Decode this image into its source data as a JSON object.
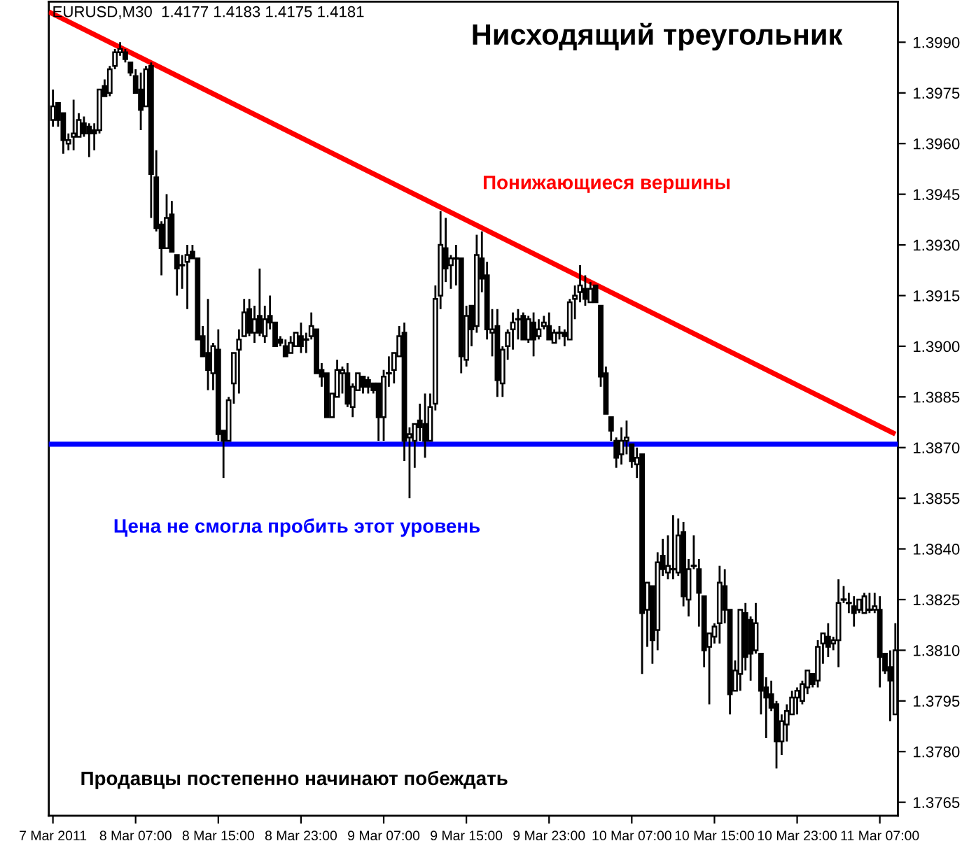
{
  "chart_data": {
    "type": "candlestick",
    "title": "Нисходящий треугольник",
    "annotations": [
      "EURUSD,M30  1.4177 1.4183 1.4175 1.4181",
      "Продавцы постепенно начинают побеждать"
    ],
    "x": [
      "2011-03-07T23:00",
      "2011-03-07T23:30",
      "2011-03-08T00:00",
      "2011-03-08T00:30",
      "2011-03-08T01:00",
      "2011-03-08T01:30",
      "2011-03-08T02:00",
      "2011-03-08T02:30",
      "2011-03-08T03:00",
      "2011-03-08T03:30",
      "2011-03-08T04:00",
      "2011-03-08T04:30",
      "2011-03-08T05:00",
      "2011-03-08T05:30",
      "2011-03-08T06:00",
      "2011-03-08T06:30",
      "2011-03-08T07:00",
      "2011-03-08T07:30",
      "2011-03-08T08:00",
      "2011-03-08T08:30",
      "2011-03-08T09:00",
      "2011-03-08T09:30",
      "2011-03-08T10:00",
      "2011-03-08T10:30",
      "2011-03-08T11:00",
      "2011-03-08T11:30",
      "2011-03-08T12:00",
      "2011-03-08T12:30",
      "2011-03-08T13:00",
      "2011-03-08T13:30",
      "2011-03-08T14:00",
      "2011-03-08T14:30",
      "2011-03-08T15:00",
      "2011-03-08T15:30",
      "2011-03-08T16:00",
      "2011-03-08T16:30",
      "2011-03-08T17:00",
      "2011-03-08T17:30",
      "2011-03-08T18:00",
      "2011-03-08T18:30",
      "2011-03-08T19:00",
      "2011-03-08T19:30",
      "2011-03-08T20:00",
      "2011-03-08T20:30",
      "2011-03-08T21:00",
      "2011-03-08T21:30",
      "2011-03-08T22:00",
      "2011-03-08T22:30",
      "2011-03-08T23:00",
      "2011-03-08T23:30",
      "2011-03-09T00:00",
      "2011-03-09T00:30",
      "2011-03-09T01:00",
      "2011-03-09T01:30",
      "2011-03-09T02:00",
      "2011-03-09T02:30",
      "2011-03-09T03:00",
      "2011-03-09T03:30",
      "2011-03-09T04:00",
      "2011-03-09T04:30",
      "2011-03-09T05:00",
      "2011-03-09T05:30",
      "2011-03-09T06:00",
      "2011-03-09T06:30",
      "2011-03-09T07:00",
      "2011-03-09T07:30",
      "2011-03-09T08:00",
      "2011-03-09T08:30",
      "2011-03-09T09:00",
      "2011-03-09T09:30",
      "2011-03-09T10:00",
      "2011-03-09T10:30",
      "2011-03-09T11:00",
      "2011-03-09T11:30",
      "2011-03-09T12:00",
      "2011-03-09T12:30",
      "2011-03-09T13:00",
      "2011-03-09T13:30",
      "2011-03-09T14:00",
      "2011-03-09T14:30",
      "2011-03-09T15:00",
      "2011-03-09T15:30",
      "2011-03-09T16:00",
      "2011-03-09T16:30",
      "2011-03-09T17:00",
      "2011-03-09T17:30",
      "2011-03-09T18:00",
      "2011-03-09T18:30",
      "2011-03-09T19:00",
      "2011-03-09T19:30",
      "2011-03-09T20:00",
      "2011-03-09T20:30",
      "2011-03-09T21:00",
      "2011-03-09T21:30",
      "2011-03-09T22:00",
      "2011-03-09T22:30",
      "2011-03-09T23:00",
      "2011-03-09T23:30",
      "2011-03-10T00:00",
      "2011-03-10T00:30",
      "2011-03-10T01:00",
      "2011-03-10T01:30",
      "2011-03-10T02:00",
      "2011-03-10T02:30",
      "2011-03-10T03:00",
      "2011-03-10T03:30",
      "2011-03-10T04:00",
      "2011-03-10T04:30",
      "2011-03-10T05:00",
      "2011-03-10T05:30",
      "2011-03-10T06:00",
      "2011-03-10T06:30",
      "2011-03-10T07:00",
      "2011-03-10T07:30",
      "2011-03-10T08:00",
      "2011-03-10T08:30",
      "2011-03-10T09:00",
      "2011-03-10T09:30",
      "2011-03-10T10:00",
      "2011-03-10T10:30",
      "2011-03-10T11:00",
      "2011-03-10T11:30",
      "2011-03-10T12:00",
      "2011-03-10T12:30",
      "2011-03-10T13:00",
      "2011-03-10T13:30",
      "2011-03-10T14:00",
      "2011-03-10T14:30",
      "2011-03-10T15:00",
      "2011-03-10T15:30",
      "2011-03-10T16:00",
      "2011-03-10T16:30",
      "2011-03-10T17:00",
      "2011-03-10T17:30",
      "2011-03-10T18:00",
      "2011-03-10T18:30",
      "2011-03-10T19:00",
      "2011-03-10T19:30",
      "2011-03-10T20:00",
      "2011-03-10T20:30",
      "2011-03-10T21:00",
      "2011-03-10T21:30",
      "2011-03-10T22:00",
      "2011-03-10T22:30",
      "2011-03-10T23:00",
      "2011-03-10T23:30",
      "2011-03-11T00:00",
      "2011-03-11T00:30",
      "2011-03-11T01:00",
      "2011-03-11T01:30",
      "2011-03-11T02:00",
      "2011-03-11T02:30",
      "2011-03-11T03:00",
      "2011-03-11T03:30",
      "2011-03-11T04:00",
      "2011-03-11T04:30",
      "2011-03-11T05:00",
      "2011-03-11T05:30",
      "2011-03-11T06:00",
      "2011-03-11T06:30",
      "2011-03-11T07:00",
      "2011-03-11T07:30",
      "2011-03-11T08:00",
      "2011-03-11T08:30"
    ],
    "ohlc": [
      [
        1.3967,
        1.3976,
        1.3965,
        1.3971
      ],
      [
        1.3972,
        1.3972,
        1.3965,
        1.3967
      ],
      [
        1.3969,
        1.3969,
        1.3957,
        1.3961
      ],
      [
        1.396,
        1.3963,
        1.3958,
        1.3961
      ],
      [
        1.3962,
        1.3973,
        1.3958,
        1.3963
      ],
      [
        1.3962,
        1.3969,
        1.3962,
        1.3967
      ],
      [
        1.3966,
        1.3968,
        1.3962,
        1.3963
      ],
      [
        1.3965,
        1.3966,
        1.3956,
        1.3963
      ],
      [
        1.3964,
        1.3966,
        1.3958,
        1.3963
      ],
      [
        1.3964,
        1.3976,
        1.3963,
        1.3976
      ],
      [
        1.3977,
        1.3979,
        1.3974,
        1.3974
      ],
      [
        1.3975,
        1.3983,
        1.3974,
        1.3982
      ],
      [
        1.3983,
        1.3988,
        1.3982,
        1.3987
      ],
      [
        1.3987,
        1.399,
        1.3986,
        1.3988
      ],
      [
        1.3987,
        1.3988,
        1.3984,
        1.3985
      ],
      [
        1.3984,
        1.3984,
        1.398,
        1.3981
      ],
      [
        1.398,
        1.3982,
        1.3975,
        1.3975
      ],
      [
        1.3976,
        1.3981,
        1.3964,
        1.397
      ],
      [
        1.3971,
        1.3983,
        1.3971,
        1.3982
      ],
      [
        1.3983,
        1.3984,
        1.3938,
        1.3951
      ],
      [
        1.395,
        1.3958,
        1.3934,
        1.3935
      ],
      [
        1.3936,
        1.3937,
        1.3921,
        1.3929
      ],
      [
        1.3929,
        1.3945,
        1.3929,
        1.3938
      ],
      [
        1.3939,
        1.3943,
        1.3928,
        1.3928
      ],
      [
        1.3927,
        1.3927,
        1.3915,
        1.3923
      ],
      [
        1.3924,
        1.3927,
        1.3917,
        1.3924
      ],
      [
        1.3925,
        1.393,
        1.3911,
        1.3927
      ],
      [
        1.3928,
        1.393,
        1.3926,
        1.3926
      ],
      [
        1.3926,
        1.3926,
        1.3902,
        1.3902
      ],
      [
        1.3903,
        1.3906,
        1.3897,
        1.3897
      ],
      [
        1.3898,
        1.3914,
        1.3887,
        1.3893
      ],
      [
        1.3892,
        1.3901,
        1.3887,
        1.39
      ],
      [
        1.3899,
        1.3905,
        1.3872,
        1.3874
      ],
      [
        1.3875,
        1.3875,
        1.3861,
        1.3872
      ],
      [
        1.3872,
        1.3885,
        1.3872,
        1.3884
      ],
      [
        1.3889,
        1.3898,
        1.3883,
        1.3898
      ],
      [
        1.3899,
        1.3905,
        1.3886,
        1.3902
      ],
      [
        1.3903,
        1.3914,
        1.3903,
        1.391
      ],
      [
        1.3911,
        1.3914,
        1.3903,
        1.3904
      ],
      [
        1.3904,
        1.3912,
        1.3901,
        1.3908
      ],
      [
        1.3909,
        1.3923,
        1.3903,
        1.3904
      ],
      [
        1.3903,
        1.3912,
        1.3901,
        1.3908
      ],
      [
        1.3909,
        1.3915,
        1.3905,
        1.3907
      ],
      [
        1.3907,
        1.3907,
        1.39,
        1.39
      ],
      [
        1.3902,
        1.3903,
        1.39,
        1.3901
      ],
      [
        1.39,
        1.3902,
        1.3897,
        1.3897
      ],
      [
        1.3898,
        1.3903,
        1.3898,
        1.3901
      ],
      [
        1.39,
        1.3904,
        1.39,
        1.3904
      ],
      [
        1.3903,
        1.3907,
        1.3898,
        1.39
      ],
      [
        1.3902,
        1.3904,
        1.3898,
        1.3902
      ],
      [
        1.3903,
        1.391,
        1.3902,
        1.3906
      ],
      [
        1.3905,
        1.3905,
        1.3892,
        1.3892
      ],
      [
        1.3893,
        1.3895,
        1.3888,
        1.3891
      ],
      [
        1.3892,
        1.3892,
        1.3879,
        1.3879
      ],
      [
        1.3879,
        1.3886,
        1.3879,
        1.3886
      ],
      [
        1.3885,
        1.3896,
        1.3885,
        1.3893
      ],
      [
        1.3892,
        1.3894,
        1.3886,
        1.3893
      ],
      [
        1.3892,
        1.3895,
        1.3882,
        1.3883
      ],
      [
        1.3882,
        1.3889,
        1.3879,
        1.3888
      ],
      [
        1.3887,
        1.3892,
        1.3887,
        1.3892
      ],
      [
        1.3891,
        1.3891,
        1.3886,
        1.3888
      ],
      [
        1.389,
        1.3891,
        1.3886,
        1.3888
      ],
      [
        1.3889,
        1.3889,
        1.3886,
        1.3887
      ],
      [
        1.3889,
        1.3889,
        1.3872,
        1.3879
      ],
      [
        1.3879,
        1.3893,
        1.3872,
        1.3891
      ],
      [
        1.3892,
        1.3897,
        1.3888,
        1.3892
      ],
      [
        1.3893,
        1.3898,
        1.3889,
        1.3898
      ],
      [
        1.3897,
        1.3906,
        1.3897,
        1.3903
      ],
      [
        1.3904,
        1.3907,
        1.3866,
        1.3872
      ],
      [
        1.3873,
        1.3876,
        1.3855,
        1.3874
      ],
      [
        1.3872,
        1.3877,
        1.3864,
        1.3877
      ],
      [
        1.3878,
        1.3883,
        1.3872,
        1.3876
      ],
      [
        1.3877,
        1.3886,
        1.3867,
        1.3872
      ],
      [
        1.3872,
        1.3886,
        1.3872,
        1.3882
      ],
      [
        1.3883,
        1.3918,
        1.3881,
        1.3914
      ],
      [
        1.3915,
        1.394,
        1.3911,
        1.393
      ],
      [
        1.3929,
        1.3938,
        1.3919,
        1.3923
      ],
      [
        1.3924,
        1.3927,
        1.3917,
        1.3926
      ],
      [
        1.3926,
        1.393,
        1.3918,
        1.3926
      ],
      [
        1.3926,
        1.3926,
        1.3892,
        1.3897
      ],
      [
        1.3896,
        1.3912,
        1.3894,
        1.3909
      ],
      [
        1.3912,
        1.3912,
        1.39,
        1.3905
      ],
      [
        1.3906,
        1.3933,
        1.3904,
        1.3927
      ],
      [
        1.3926,
        1.3934,
        1.3916,
        1.392
      ],
      [
        1.3921,
        1.3925,
        1.3902,
        1.3905
      ],
      [
        1.3904,
        1.3911,
        1.3897,
        1.3905
      ],
      [
        1.3906,
        1.3911,
        1.3885,
        1.389
      ],
      [
        1.3889,
        1.39,
        1.3885,
        1.3899
      ],
      [
        1.39,
        1.3905,
        1.3896,
        1.3904
      ],
      [
        1.3905,
        1.391,
        1.3899,
        1.3907
      ],
      [
        1.3908,
        1.3911,
        1.3902,
        1.3908
      ],
      [
        1.3909,
        1.391,
        1.3902,
        1.3902
      ],
      [
        1.3902,
        1.3909,
        1.3901,
        1.3908
      ],
      [
        1.3907,
        1.391,
        1.3897,
        1.3902
      ],
      [
        1.3903,
        1.3908,
        1.3902,
        1.3905
      ],
      [
        1.3906,
        1.3909,
        1.3905,
        1.3907
      ],
      [
        1.3906,
        1.391,
        1.3902,
        1.3902
      ],
      [
        1.3901,
        1.3905,
        1.3901,
        1.3904
      ],
      [
        1.3904,
        1.3906,
        1.3902,
        1.3904
      ],
      [
        1.3904,
        1.3905,
        1.39,
        1.3903
      ],
      [
        1.3902,
        1.3914,
        1.3902,
        1.3913
      ],
      [
        1.3914,
        1.3918,
        1.3908,
        1.3915
      ],
      [
        1.3916,
        1.3924,
        1.3913,
        1.3918
      ],
      [
        1.3917,
        1.3921,
        1.3912,
        1.3914
      ],
      [
        1.3913,
        1.3919,
        1.3913,
        1.3917
      ],
      [
        1.3918,
        1.3918,
        1.3913,
        1.3913
      ],
      [
        1.3912,
        1.3912,
        1.3888,
        1.3891
      ],
      [
        1.3892,
        1.3894,
        1.388,
        1.388
      ],
      [
        1.3879,
        1.3879,
        1.3872,
        1.3875
      ],
      [
        1.3872,
        1.3873,
        1.3864,
        1.3867
      ],
      [
        1.3868,
        1.3876,
        1.3865,
        1.3872
      ],
      [
        1.3872,
        1.3878,
        1.3868,
        1.3873
      ],
      [
        1.3871,
        1.3871,
        1.3864,
        1.3866
      ],
      [
        1.3865,
        1.387,
        1.3861,
        1.3867
      ],
      [
        1.3868,
        1.3868,
        1.3803,
        1.3821
      ],
      [
        1.3822,
        1.383,
        1.3811,
        1.383
      ],
      [
        1.3829,
        1.3829,
        1.3806,
        1.3813
      ],
      [
        1.3816,
        1.3839,
        1.381,
        1.3836
      ],
      [
        1.3838,
        1.3843,
        1.3832,
        1.3834
      ],
      [
        1.3833,
        1.3844,
        1.3831,
        1.3835
      ],
      [
        1.3834,
        1.385,
        1.3831,
        1.3834
      ],
      [
        1.3833,
        1.3849,
        1.3832,
        1.3844
      ],
      [
        1.3845,
        1.3848,
        1.3823,
        1.3826
      ],
      [
        1.3825,
        1.3837,
        1.382,
        1.3834
      ],
      [
        1.3835,
        1.3844,
        1.3834,
        1.3835
      ],
      [
        1.3834,
        1.3837,
        1.3817,
        1.3827
      ],
      [
        1.3826,
        1.3826,
        1.3805,
        1.381
      ],
      [
        1.3811,
        1.3815,
        1.3794,
        1.3815
      ],
      [
        1.3814,
        1.3818,
        1.3812,
        1.3817
      ],
      [
        1.3818,
        1.3835,
        1.3812,
        1.383
      ],
      [
        1.3829,
        1.3834,
        1.3818,
        1.3822
      ],
      [
        1.3822,
        1.3822,
        1.3791,
        1.3797
      ],
      [
        1.3798,
        1.3807,
        1.3798,
        1.3804
      ],
      [
        1.3803,
        1.3822,
        1.3798,
        1.3822
      ],
      [
        1.3821,
        1.3824,
        1.3804,
        1.3808
      ],
      [
        1.3819,
        1.382,
        1.3801,
        1.3809
      ],
      [
        1.381,
        1.3824,
        1.3809,
        1.3818
      ],
      [
        1.3809,
        1.3809,
        1.3791,
        1.3798
      ],
      [
        1.3799,
        1.3802,
        1.3784,
        1.3796
      ],
      [
        1.3797,
        1.3801,
        1.3792,
        1.3793
      ],
      [
        1.3794,
        1.3795,
        1.3775,
        1.3783
      ],
      [
        1.3783,
        1.3791,
        1.3779,
        1.3789
      ],
      [
        1.3788,
        1.3794,
        1.3783,
        1.3792
      ],
      [
        1.3791,
        1.3798,
        1.3791,
        1.3796
      ],
      [
        1.3796,
        1.3799,
        1.3791,
        1.3798
      ],
      [
        1.3795,
        1.3801,
        1.3794,
        1.38
      ],
      [
        1.3799,
        1.3804,
        1.3797,
        1.3804
      ],
      [
        1.3803,
        1.3803,
        1.3799,
        1.38
      ],
      [
        1.3801,
        1.3813,
        1.3799,
        1.3811
      ],
      [
        1.3812,
        1.3815,
        1.3806,
        1.3815
      ],
      [
        1.3814,
        1.3818,
        1.3808,
        1.3811
      ],
      [
        1.3812,
        1.3814,
        1.381,
        1.3813
      ],
      [
        1.3813,
        1.3831,
        1.3805,
        1.3824
      ],
      [
        1.3825,
        1.3829,
        1.3824,
        1.3825
      ],
      [
        1.3824,
        1.3827,
        1.3821,
        1.3824
      ],
      [
        1.3823,
        1.3826,
        1.3817,
        1.3821
      ],
      [
        1.3822,
        1.3825,
        1.3821,
        1.3825
      ],
      [
        1.3821,
        1.3827,
        1.3821,
        1.3826
      ],
      [
        1.3822,
        1.3827,
        1.3821,
        1.3822
      ],
      [
        1.3822,
        1.3827,
        1.3821,
        1.3823
      ],
      [
        1.3822,
        1.3826,
        1.3799,
        1.3808
      ],
      [
        1.3809,
        1.3809,
        1.3803,
        1.3804
      ],
      [
        1.3805,
        1.381,
        1.3789,
        1.3801
      ],
      [
        1.3791,
        1.3818,
        1.3791,
        1.381
      ]
    ],
    "series": [
      {
        "type": "line",
        "name": "Понижающиеся вершины",
        "color": "#ff0000",
        "x": [
          "2011-03-07T22:36",
          "2011-03-11T08:30"
        ],
        "values": [
          1.3999,
          1.3874
        ]
      }
    ],
    "ref_lines": [
      {
        "axis": "y",
        "value": 1.3871,
        "label": "Цена не смогла пробить этот уровень",
        "color": "#0000ff"
      }
    ],
    "xlim": [
      "2011-03-07T22:36",
      "2011-03-11T08:45"
    ],
    "xticks": [
      {
        "value": "2011-03-07T23:00",
        "label": "7 Mar 2011"
      },
      {
        "value": "2011-03-08T07:00",
        "label": "8 Mar 07:00"
      },
      {
        "value": "2011-03-08T15:00",
        "label": "8 Mar 15:00"
      },
      {
        "value": "2011-03-08T23:00",
        "label": "8 Mar 23:00"
      },
      {
        "value": "2011-03-09T07:00",
        "label": "9 Mar 07:00"
      },
      {
        "value": "2011-03-09T15:00",
        "label": "9 Mar 15:00"
      },
      {
        "value": "2011-03-09T23:00",
        "label": "9 Mar 23:00"
      },
      {
        "value": "2011-03-10T07:00",
        "label": "10 Mar 07:00"
      },
      {
        "value": "2011-03-10T15:00",
        "label": "10 Mar 15:00"
      },
      {
        "value": "2011-03-10T23:00",
        "label": "10 Mar 23:00"
      },
      {
        "value": "2011-03-11T07:00",
        "label": "11 Mar 07:00"
      }
    ],
    "ylim": [
      1.3761,
      1.4002
    ],
    "yticks": [
      {
        "value": 1.3765,
        "label": "1.3765"
      },
      {
        "value": 1.378,
        "label": "1.3780"
      },
      {
        "value": 1.3795,
        "label": "1.3795"
      },
      {
        "value": 1.381,
        "label": "1.3810"
      },
      {
        "value": 1.3825,
        "label": "1.3825"
      },
      {
        "value": 1.384,
        "label": "1.3840"
      },
      {
        "value": 1.3855,
        "label": "1.3855"
      },
      {
        "value": 1.387,
        "label": "1.3870"
      },
      {
        "value": 1.3885,
        "label": "1.3885"
      },
      {
        "value": 1.39,
        "label": "1.3900"
      },
      {
        "value": 1.3915,
        "label": "1.3915"
      },
      {
        "value": 1.393,
        "label": "1.3930"
      },
      {
        "value": 1.3945,
        "label": "1.3945"
      },
      {
        "value": 1.396,
        "label": "1.3960"
      },
      {
        "value": 1.3975,
        "label": "1.3975"
      },
      {
        "value": 1.399,
        "label": "1.3990"
      }
    ],
    "grid": false,
    "legend": false
  }
}
